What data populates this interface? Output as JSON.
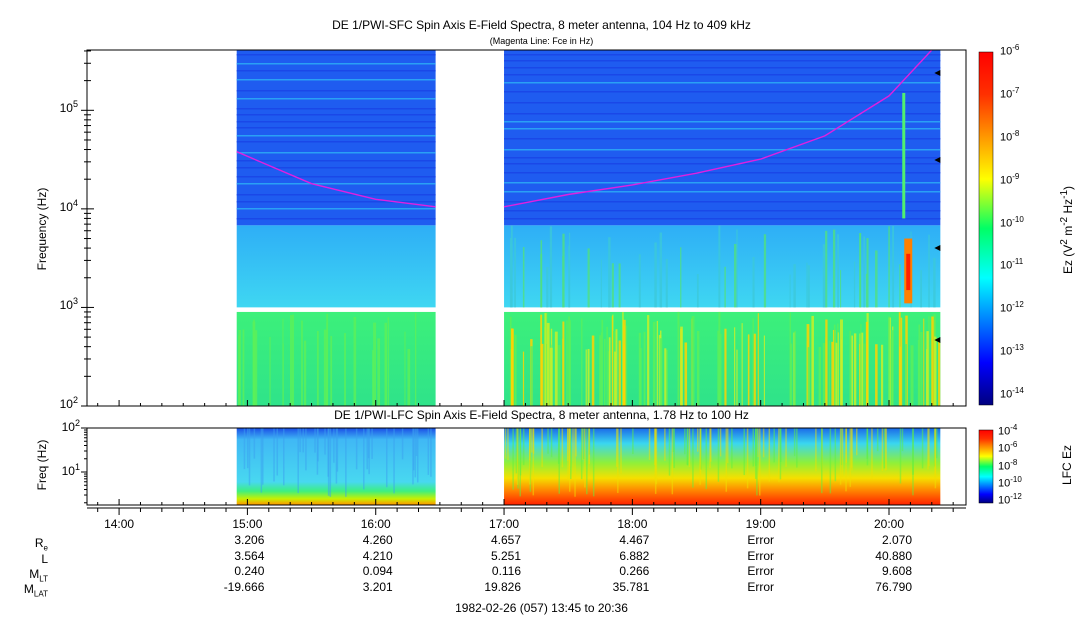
{
  "chart_data": [
    {
      "type": "heatmap",
      "title": "DE 1/PWI-SFC  Spin Axis E-Field Spectra, 8 meter antenna, 104 Hz to 409 kHz",
      "subtitle": "(Magenta Line: Fce in Hz)",
      "ylabel": "Frequency (Hz)",
      "yscale": "log",
      "ylim": [
        100,
        409000
      ],
      "yticks": [
        "10^2",
        "10^3",
        "10^4",
        "10^5"
      ],
      "colorbar_label": "Ez (V^2 m^-2 Hz^-1)",
      "colorbar_ticks": [
        "10^-6",
        "10^-7",
        "10^-8",
        "10^-9",
        "10^-10",
        "10^-11",
        "10^-12",
        "10^-13",
        "10^-14"
      ],
      "data_intervals": [
        [
          "14:55",
          "16:28"
        ],
        [
          "17:00",
          "20:24"
        ]
      ],
      "fce_line": {
        "times": [
          "14:55",
          "15:30",
          "16:00",
          "16:28",
          "17:00",
          "17:30",
          "18:00",
          "18:30",
          "19:00",
          "19:30",
          "20:00",
          "20:20"
        ],
        "freqs_hz": [
          38000,
          18000,
          12500,
          10500,
          10500,
          14000,
          17500,
          23000,
          32000,
          55000,
          140000,
          409000
        ]
      }
    },
    {
      "type": "heatmap",
      "title": "DE 1/PWI-LFC  Spin Axis E-Field Spectra, 8 meter antenna, 1.78 Hz to 100 Hz",
      "ylabel": "Freq (Hz)",
      "yscale": "log",
      "ylim": [
        1.78,
        100
      ],
      "yticks": [
        "10^1",
        "10^2"
      ],
      "colorbar_label": "LFC Ez",
      "colorbar_ticks": [
        "10^-4",
        "10^-6",
        "10^-8",
        "10^-10",
        "10^-12"
      ],
      "data_intervals": [
        [
          "14:55",
          "16:28"
        ],
        [
          "17:00",
          "20:24"
        ]
      ]
    }
  ],
  "x_axis": {
    "ticks": [
      "14:00",
      "15:00",
      "16:00",
      "17:00",
      "18:00",
      "19:00",
      "20:00"
    ],
    "range": [
      "13:45",
      "20:36"
    ]
  },
  "ephemeris": {
    "rows": [
      {
        "name": "R",
        "sub": "e",
        "values": [
          "3.206",
          "4.260",
          "4.657",
          "4.467",
          "Error",
          "2.070"
        ]
      },
      {
        "name": "L",
        "sub": "",
        "values": [
          "3.564",
          "4.210",
          "5.251",
          "6.882",
          "Error",
          "40.880"
        ]
      },
      {
        "name": "M",
        "sub": "LT",
        "values": [
          "0.240",
          "0.094",
          "0.116",
          "0.266",
          "Error",
          "9.608"
        ]
      },
      {
        "name": "M",
        "sub": "LAT",
        "values": [
          "-19.666",
          "3.201",
          "19.826",
          "35.781",
          "Error",
          "76.790"
        ]
      }
    ]
  },
  "footer": "1982-02-26 (057) 13:45 to 20:36"
}
